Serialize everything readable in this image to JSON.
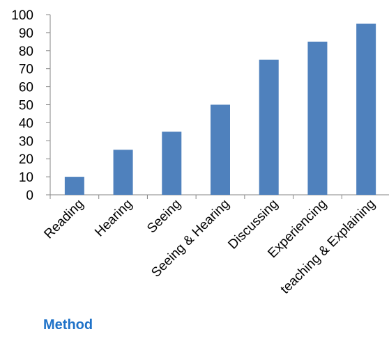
{
  "chart_data": {
    "type": "bar",
    "categories": [
      "Reading",
      "Hearing",
      "Seeing",
      "Seeing & Hearing",
      "Discussing",
      "Experiencing",
      "teaching & Explaining"
    ],
    "values": [
      10,
      25,
      35,
      50,
      75,
      85,
      95
    ],
    "title": "",
    "xlabel": "Method",
    "ylabel": "",
    "ylim": [
      0,
      100
    ],
    "yticks": [
      0,
      10,
      20,
      30,
      40,
      50,
      60,
      70,
      80,
      90,
      100
    ],
    "grid": false,
    "legend": "none",
    "colors": {
      "bar": "#4f81bd",
      "axis": "#868686",
      "xlabel": "#1f72c8"
    }
  }
}
